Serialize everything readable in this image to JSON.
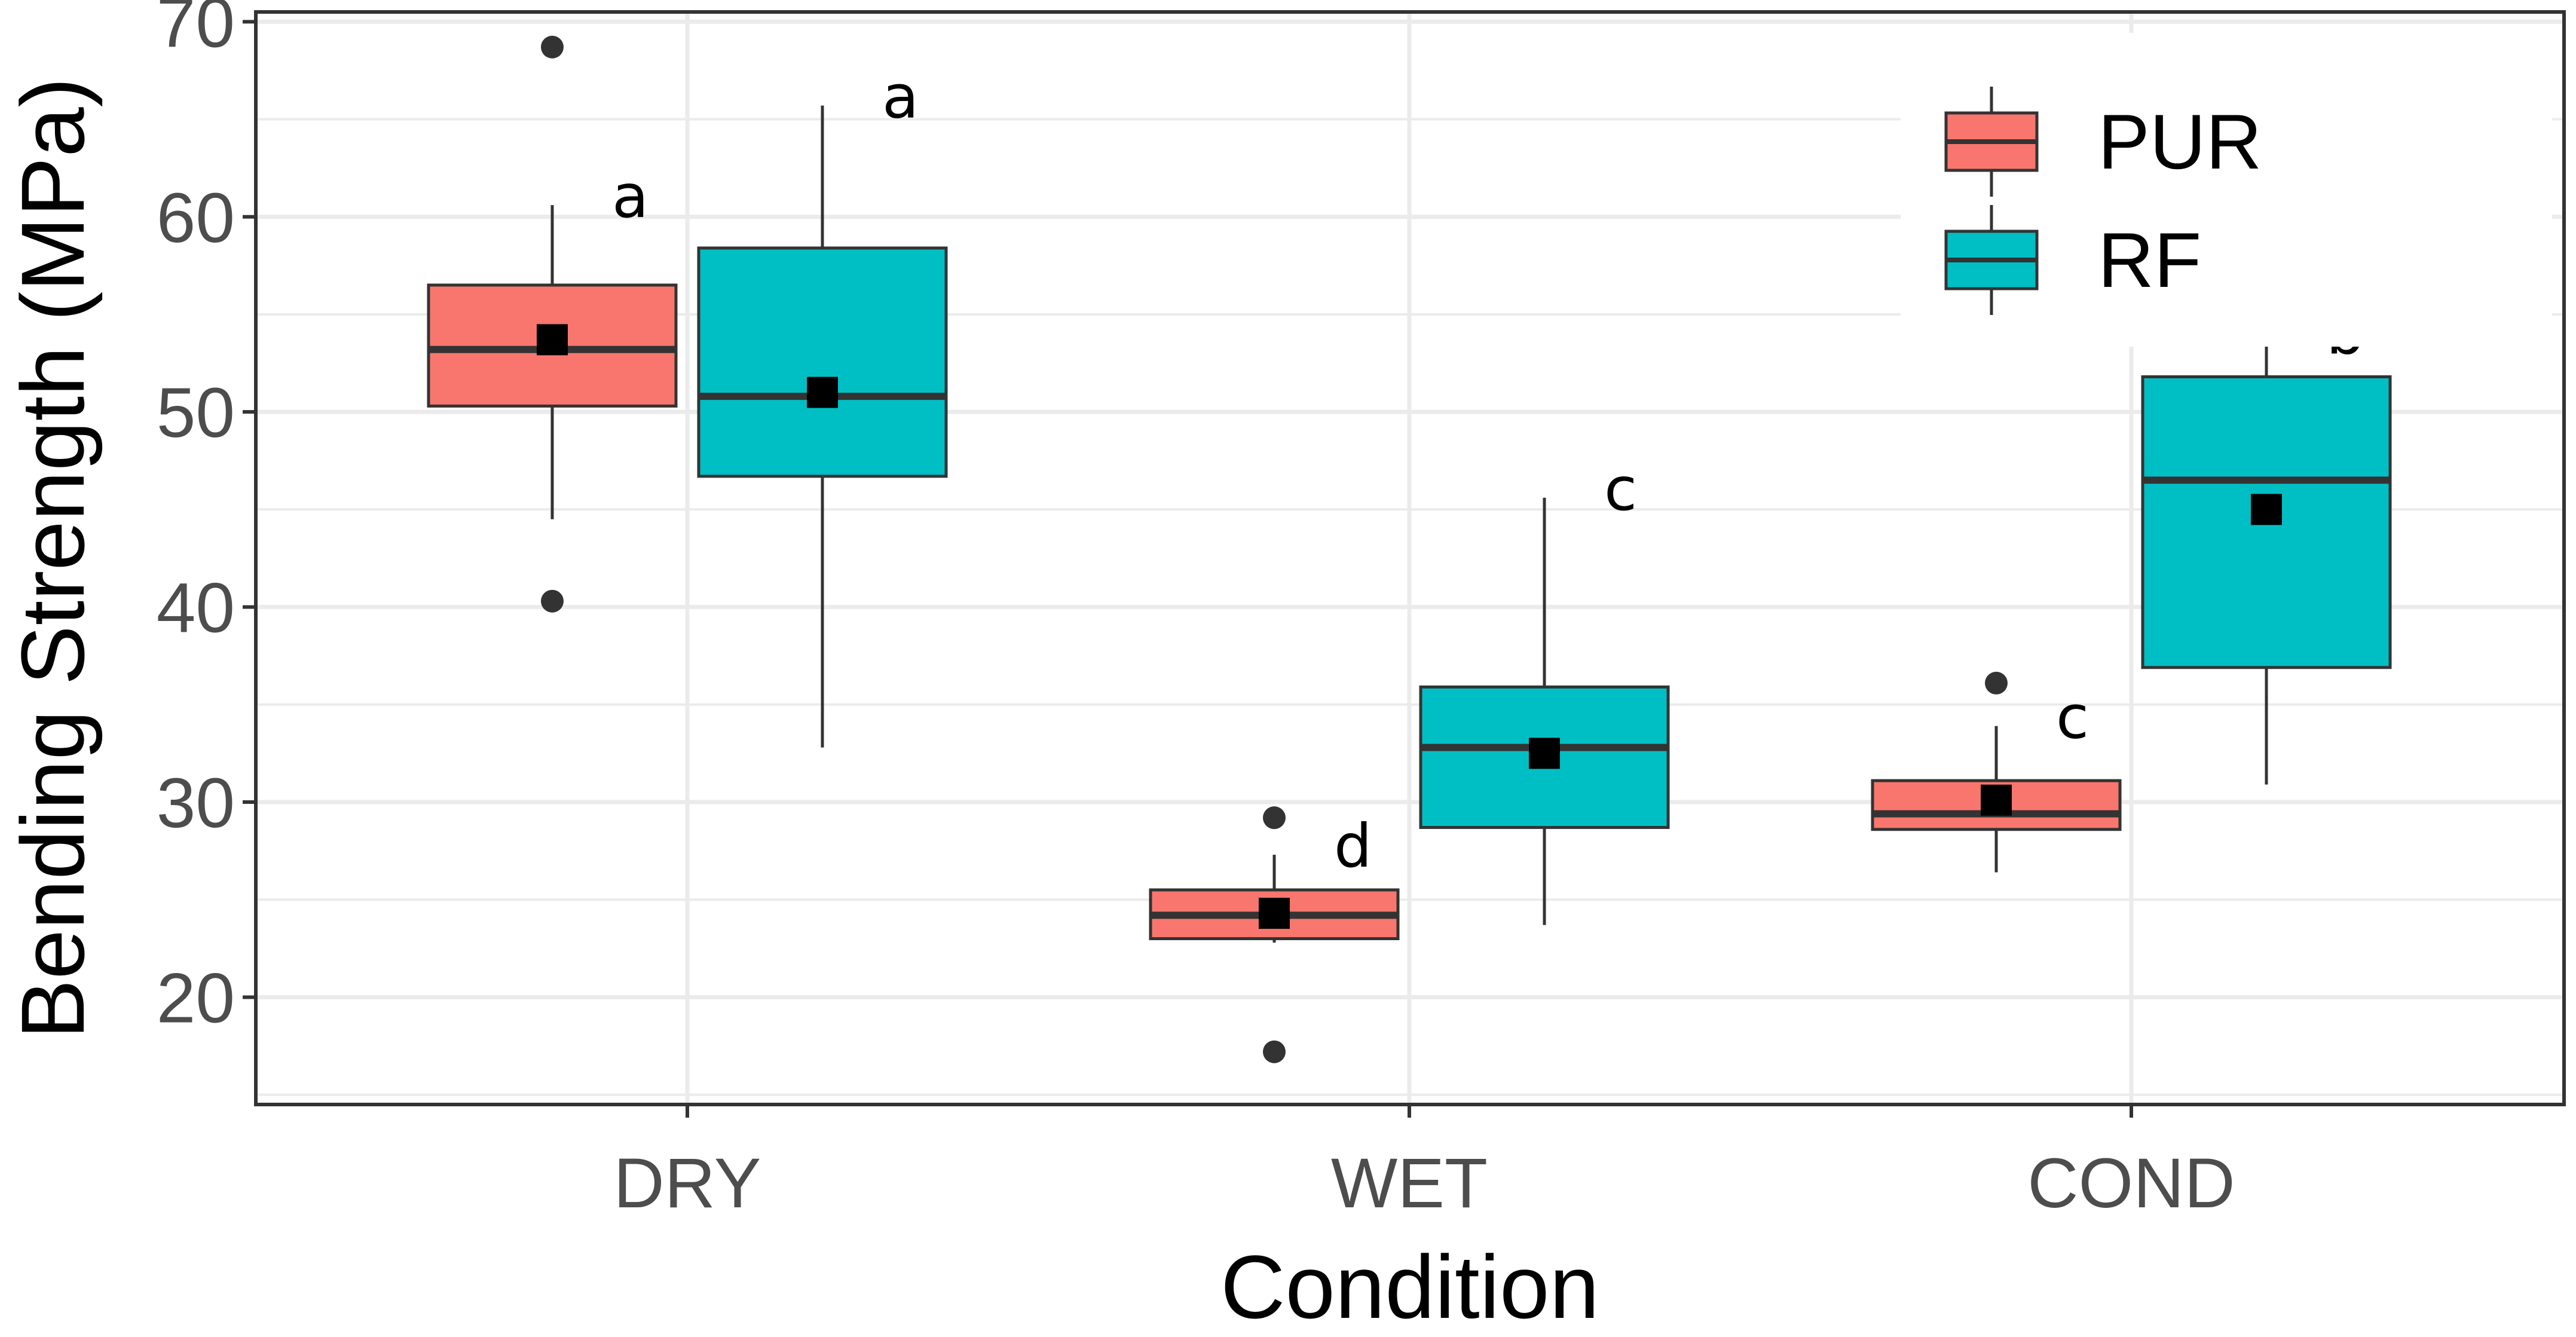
{
  "chart_data": {
    "type": "boxplot",
    "xlabel": "Condition",
    "ylabel": "Bending Strength (MPa)",
    "ylim": [
      14.5,
      70.5
    ],
    "yticks": [
      20,
      30,
      40,
      50,
      60,
      70
    ],
    "categories": [
      "DRY",
      "WET",
      "COND"
    ],
    "grid": true,
    "legend_position": "top-right",
    "series": [
      {
        "name": "PUR",
        "color": "#F8766D",
        "boxes": [
          {
            "category": "DRY",
            "q1": 50.3,
            "median": 53.2,
            "q3": 56.5,
            "whisker_low": 44.5,
            "whisker_high": 60.6,
            "mean": 53.7,
            "outliers": [
              68.7,
              40.3
            ],
            "letter": "a"
          },
          {
            "category": "WET",
            "q1": 23.0,
            "median": 24.2,
            "q3": 25.5,
            "whisker_low": 22.8,
            "whisker_high": 27.3,
            "mean": 24.3,
            "outliers": [
              29.2,
              17.2
            ],
            "letter": "d"
          },
          {
            "category": "COND",
            "q1": 28.6,
            "median": 29.4,
            "q3": 31.1,
            "whisker_low": 26.4,
            "whisker_high": 33.9,
            "mean": 30.1,
            "outliers": [
              36.1
            ],
            "letter": "c"
          }
        ]
      },
      {
        "name": "RF",
        "color": "#00BFC4",
        "boxes": [
          {
            "category": "DRY",
            "q1": 46.7,
            "median": 50.8,
            "q3": 58.4,
            "whisker_low": 32.8,
            "whisker_high": 65.7,
            "mean": 51.0,
            "outliers": [],
            "letter": "a"
          },
          {
            "category": "WET",
            "q1": 28.7,
            "median": 32.8,
            "q3": 35.9,
            "whisker_low": 23.7,
            "whisker_high": 45.6,
            "mean": 32.5,
            "outliers": [],
            "letter": "c"
          },
          {
            "category": "COND",
            "q1": 36.9,
            "median": 46.5,
            "q3": 51.8,
            "whisker_low": 30.9,
            "whisker_high": 53.6,
            "mean": 45.0,
            "outliers": [],
            "letter": "b"
          }
        ]
      }
    ]
  }
}
